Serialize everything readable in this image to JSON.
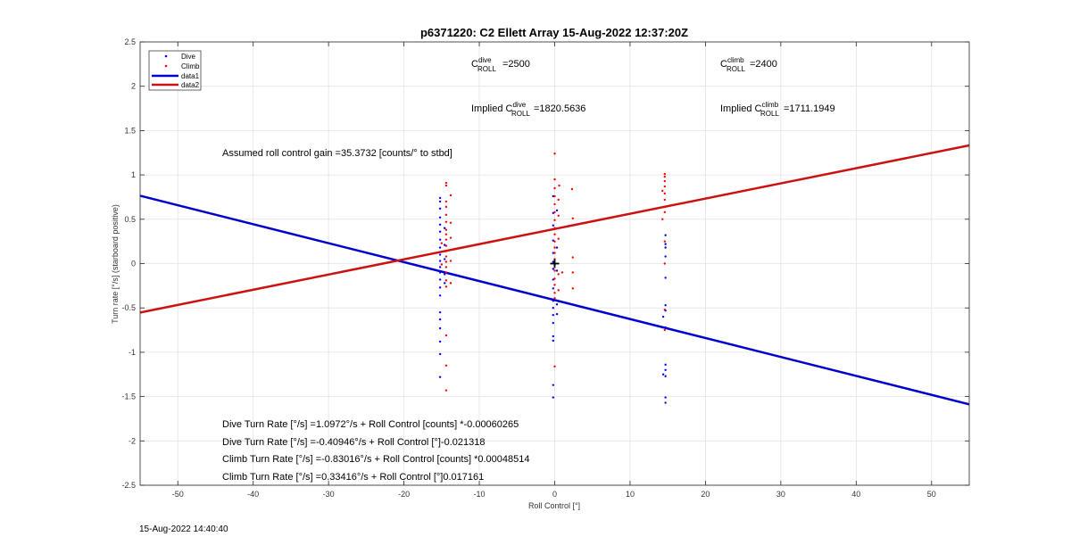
{
  "chart_data": {
    "type": "scatter",
    "title": "p6371220: C2 Ellett Array 15-Aug-2022 12:37:20Z",
    "xlabel": "Roll Control [°]",
    "ylabel": "Turn rate [°/s] (starboard positive)",
    "xlim": [
      -55,
      55
    ],
    "ylim": [
      -2.5,
      2.5
    ],
    "xticks": [
      -50,
      -40,
      -30,
      -20,
      -10,
      0,
      10,
      20,
      30,
      40,
      50
    ],
    "yticks": [
      -2.5,
      -2,
      -1.5,
      -1,
      -0.5,
      0,
      0.5,
      1,
      1.5,
      2,
      2.5
    ],
    "grid": true,
    "legend_position": "top-left",
    "series": [
      {
        "name": "Dive",
        "kind": "points",
        "color": "#0000ff",
        "points": [
          [
            -15.2,
            0.74
          ],
          [
            -15.2,
            0.7
          ],
          [
            -15.2,
            0.62
          ],
          [
            -15.2,
            0.52
          ],
          [
            -15.2,
            0.44
          ],
          [
            -15.2,
            0.36
          ],
          [
            -15.2,
            0.27
          ],
          [
            -15.2,
            0.18
          ],
          [
            -15.2,
            0.1
          ],
          [
            -15.2,
            0.03
          ],
          [
            -15.2,
            -0.04
          ],
          [
            -15.2,
            -0.1
          ],
          [
            -15.2,
            -0.18
          ],
          [
            -15.2,
            -0.27
          ],
          [
            -15.2,
            -0.36
          ],
          [
            -15.2,
            -0.55
          ],
          [
            -15.2,
            -0.63
          ],
          [
            -15.2,
            -0.73
          ],
          [
            -15.2,
            -0.88
          ],
          [
            -15.2,
            -1.02
          ],
          [
            -15.2,
            -1.28
          ],
          [
            -14.6,
            0.4
          ],
          [
            -14.6,
            0.21
          ],
          [
            -14.6,
            0.05
          ],
          [
            -14.6,
            -0.12
          ],
          [
            -14.6,
            -0.22
          ],
          [
            -0.2,
            0.76
          ],
          [
            -0.2,
            0.57
          ],
          [
            -0.2,
            0.43
          ],
          [
            -0.2,
            0.26
          ],
          [
            -0.2,
            0.12
          ],
          [
            -0.2,
            0.02
          ],
          [
            -0.2,
            -0.06
          ],
          [
            -0.2,
            -0.18
          ],
          [
            -0.2,
            -0.28
          ],
          [
            -0.2,
            -0.42
          ],
          [
            -0.2,
            -0.5
          ],
          [
            -0.2,
            -0.58
          ],
          [
            -0.2,
            -0.67
          ],
          [
            -0.2,
            -0.82
          ],
          [
            -0.2,
            -0.87
          ],
          [
            -0.2,
            -1.37
          ],
          [
            -0.2,
            -1.51
          ],
          [
            0.3,
            0.6
          ],
          [
            0.3,
            0.18
          ],
          [
            0.3,
            -0.08
          ],
          [
            0.3,
            -0.46
          ],
          [
            0.3,
            -0.57
          ],
          [
            14.7,
            0.32
          ],
          [
            14.7,
            0.22
          ],
          [
            14.7,
            0.18
          ],
          [
            14.7,
            0.08
          ],
          [
            14.7,
            -0.16
          ],
          [
            14.7,
            -0.47
          ],
          [
            14.7,
            -0.53
          ],
          [
            14.7,
            -0.72
          ],
          [
            14.7,
            -1.14
          ],
          [
            14.7,
            -1.2
          ],
          [
            14.7,
            -1.27
          ],
          [
            14.7,
            -1.51
          ],
          [
            14.7,
            -1.57
          ],
          [
            14.4,
            -0.6
          ],
          [
            14.4,
            -1.25
          ]
        ]
      },
      {
        "name": "Climb",
        "kind": "points",
        "color": "#ff0000",
        "points": [
          [
            -14.4,
            0.91
          ],
          [
            -14.4,
            0.88
          ],
          [
            -14.4,
            0.7
          ],
          [
            -14.4,
            0.64
          ],
          [
            -14.4,
            0.55
          ],
          [
            -14.4,
            0.47
          ],
          [
            -14.4,
            0.38
          ],
          [
            -14.4,
            0.33
          ],
          [
            -14.4,
            0.27
          ],
          [
            -14.4,
            0.2
          ],
          [
            -14.4,
            0.14
          ],
          [
            -14.4,
            0.08
          ],
          [
            -14.4,
            0.02
          ],
          [
            -14.4,
            -0.04
          ],
          [
            -14.4,
            -0.1
          ],
          [
            -14.4,
            -0.19
          ],
          [
            -14.4,
            -0.26
          ],
          [
            -14.4,
            -0.81
          ],
          [
            -14.4,
            -1.15
          ],
          [
            -14.4,
            -1.43
          ],
          [
            -13.8,
            0.77
          ],
          [
            -13.8,
            0.46
          ],
          [
            -13.8,
            0.29
          ],
          [
            -13.8,
            0.03
          ],
          [
            -13.8,
            -0.22
          ],
          [
            -15.0,
            0.23
          ],
          [
            -15.0,
            -0.01
          ],
          [
            0.0,
            1.24
          ],
          [
            0.0,
            0.95
          ],
          [
            0.0,
            0.85
          ],
          [
            0.0,
            0.76
          ],
          [
            0.0,
            0.67
          ],
          [
            0.0,
            0.58
          ],
          [
            0.0,
            0.49
          ],
          [
            0.0,
            0.4
          ],
          [
            0.0,
            0.33
          ],
          [
            0.0,
            0.25
          ],
          [
            0.0,
            0.18
          ],
          [
            0.0,
            0.12
          ],
          [
            0.0,
            0.05
          ],
          [
            0.0,
            -0.02
          ],
          [
            0.0,
            -0.08
          ],
          [
            0.0,
            -0.17
          ],
          [
            0.0,
            -0.24
          ],
          [
            0.0,
            -0.33
          ],
          [
            0.0,
            -0.39
          ],
          [
            0.0,
            -1.16
          ],
          [
            0.5,
            0.72
          ],
          [
            0.5,
            0.54
          ],
          [
            0.5,
            0.28
          ],
          [
            0.5,
            -0.12
          ],
          [
            0.5,
            -0.3
          ],
          [
            0.6,
            0.88
          ],
          [
            1.0,
            -0.1
          ],
          [
            2.3,
            0.84
          ],
          [
            2.4,
            0.51
          ],
          [
            2.4,
            0.07
          ],
          [
            2.4,
            -0.1
          ],
          [
            2.4,
            -0.28
          ],
          [
            14.6,
            1.01
          ],
          [
            14.6,
            0.98
          ],
          [
            14.6,
            0.93
          ],
          [
            14.6,
            0.87
          ],
          [
            14.6,
            0.79
          ],
          [
            14.6,
            0.72
          ],
          [
            14.6,
            0.64
          ],
          [
            14.6,
            0.58
          ],
          [
            14.6,
            0.25
          ],
          [
            14.6,
            0.0
          ],
          [
            14.6,
            -0.52
          ],
          [
            14.6,
            -0.75
          ],
          [
            14.3,
            0.82
          ],
          [
            14.3,
            0.5
          ]
        ]
      },
      {
        "name": "data1",
        "kind": "line",
        "color": "#0000cc",
        "x": [
          -55,
          55
        ],
        "y": [
          0.765,
          -1.588
        ]
      },
      {
        "name": "data2",
        "kind": "line",
        "color": "#cc1111",
        "x": [
          -55,
          55
        ],
        "y": [
          -0.552,
          1.333
        ]
      }
    ],
    "origin_marker": [
      0,
      0
    ],
    "annotations": {
      "c_roll_dive": {
        "main": "C",
        "sup": "dive",
        "sub": "ROLL",
        "value": "=2500"
      },
      "c_roll_climb": {
        "main": "C",
        "sup": "climb",
        "sub": "ROLL",
        "value": "=2400"
      },
      "implied_dive": {
        "prefix": "Implied C",
        "sup": "dive",
        "sub": "ROLL",
        "value": "=1820.5636"
      },
      "implied_climb": {
        "prefix": "Implied C",
        "sup": "climb",
        "sub": "ROLL",
        "value": "=1711.1949"
      },
      "gain": "Assumed roll control gain =35.3732 [counts/° to stbd]",
      "dive_counts": "Dive Turn Rate [°/s] =1.0972°/s + Roll Control [counts] *-0.00060265",
      "dive_deg": "Dive Turn Rate [°/s] =-0.40946°/s + Roll Control [°]-0.021318",
      "climb_counts": "Climb Turn Rate [°/s] =-0.83016°/s + Roll Control [counts] *0.00048514",
      "climb_deg": "Climb Turn Rate [°/s] =0.33416°/s + Roll Control [°]0.017161"
    }
  },
  "footer_timestamp": "15-Aug-2022 14:40:40"
}
